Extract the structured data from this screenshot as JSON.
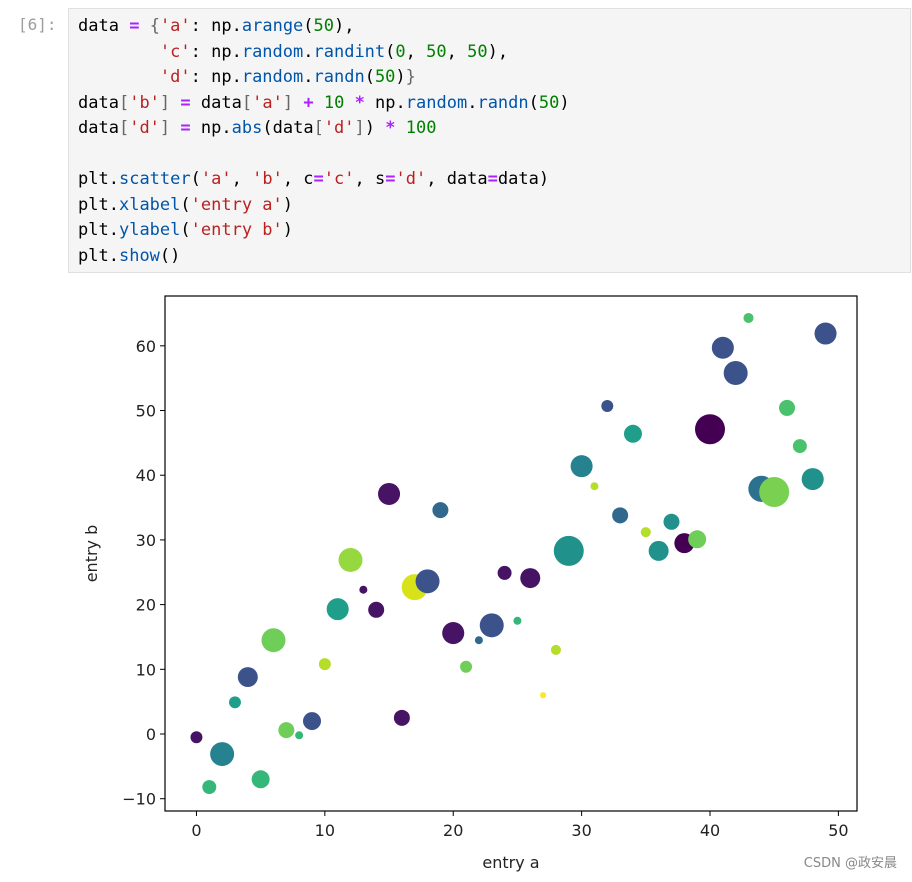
{
  "prompt": "[6]:",
  "code_blocks": [
    [
      "data = {'a': np.arange(50),",
      "        'c': np.random.randint(0, 50, 50),",
      "        'd': np.random.randn(50)}",
      "data['b'] = data['a'] + 10 * np.random.randn(50)",
      "data['d'] = np.abs(data['d']) * 100"
    ],
    [
      "plt.scatter('a', 'b', c='c', s='d', data=data)",
      "plt.xlabel('entry a')",
      "plt.ylabel('entry b')",
      "plt.show()"
    ]
  ],
  "watermark": "CSDN @政安晨",
  "chart_data": {
    "type": "scatter",
    "xlabel": "entry a",
    "ylabel": "entry b",
    "x": [
      0,
      1,
      2,
      3,
      4,
      5,
      6,
      7,
      8,
      9,
      10,
      11,
      12,
      13,
      14,
      15,
      16,
      17,
      18,
      19,
      20,
      21,
      22,
      23,
      24,
      25,
      26,
      27,
      28,
      29,
      30,
      31,
      32,
      33,
      34,
      35,
      36,
      37,
      38,
      39,
      40,
      41,
      42,
      43,
      44,
      45,
      46,
      47,
      48,
      49
    ],
    "y": [
      -0.5,
      -8.2,
      -3.1,
      4.9,
      8.8,
      -7.0,
      14.5,
      0.6,
      -0.2,
      2.0,
      10.8,
      19.3,
      26.9,
      22.3,
      19.2,
      37.1,
      2.5,
      22.7,
      23.6,
      34.6,
      15.6,
      10.4,
      14.5,
      16.8,
      24.9,
      17.5,
      24.1,
      6.0,
      13.0,
      28.3,
      41.4,
      38.3,
      50.7,
      33.8,
      46.4,
      31.2,
      28.3,
      32.8,
      29.5,
      30.1,
      47.1,
      59.7,
      55.8,
      64.3,
      37.9,
      37.4,
      50.4,
      44.5,
      39.4,
      61.9
    ],
    "sizes": [
      38,
      52,
      153,
      38,
      106,
      86,
      153,
      68,
      17,
      86,
      38,
      129,
      153,
      17,
      68,
      129,
      68,
      180,
      153,
      68,
      129,
      38,
      17,
      153,
      52,
      17,
      106,
      10,
      27,
      239,
      129,
      17,
      38,
      68,
      86,
      27,
      106,
      68,
      106,
      86,
      239,
      129,
      153,
      27,
      180,
      239,
      68,
      52,
      129,
      129
    ],
    "colors": [
      "#471365",
      "#35b779",
      "#26828e",
      "#1f9e89",
      "#3b528b",
      "#35b779",
      "#6ece58",
      "#6ece58",
      "#35b779",
      "#3b528b",
      "#b5de2b",
      "#1f9e89",
      "#95d840",
      "#471365",
      "#471365",
      "#471365",
      "#471365",
      "#d8e219",
      "#3b528b",
      "#31688e",
      "#471365",
      "#6ece58",
      "#31688e",
      "#3b528b",
      "#471365",
      "#35b779",
      "#471365",
      "#fde725",
      "#b5de2b",
      "#21918c",
      "#26828e",
      "#b5de2b",
      "#3b528b",
      "#31688e",
      "#1f9e89",
      "#b5de2b",
      "#21918c",
      "#21918c",
      "#440154",
      "#6ece58",
      "#440154",
      "#3b528b",
      "#3b528b",
      "#4ac16d",
      "#2c728e",
      "#7ad151",
      "#4ac16d",
      "#4ac16d",
      "#21918c",
      "#3b528b"
    ],
    "xlim": [
      -2.45,
      51.45
    ],
    "ylim": [
      -11.9,
      67.7
    ],
    "xticks": [
      0,
      10,
      20,
      30,
      40,
      50
    ],
    "yticks": [
      {
        "value": -10,
        "label": "−10"
      },
      0,
      10,
      20,
      30,
      40,
      50,
      60
    ]
  }
}
